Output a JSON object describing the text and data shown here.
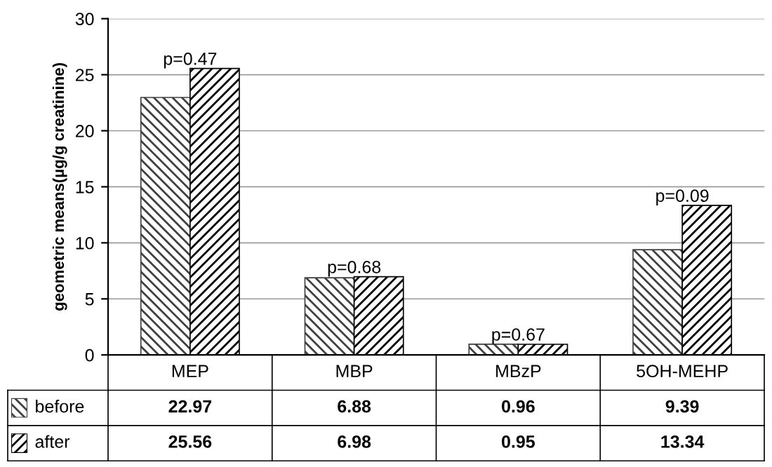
{
  "chart_data": {
    "type": "bar",
    "ylabel": "geometric means(µg/g creatinine)",
    "categories": [
      "MEP",
      "MBP",
      "MBzP",
      "5OH-MEHP"
    ],
    "series": [
      {
        "name": "before",
        "color": "#404040",
        "values": [
          22.97,
          6.88,
          0.96,
          9.39
        ]
      },
      {
        "name": "after",
        "color": "#000000",
        "values": [
          25.56,
          6.98,
          0.95,
          13.34
        ]
      }
    ],
    "ylim": [
      0,
      30
    ],
    "yticks": [
      0,
      5,
      10,
      15,
      20,
      25,
      30
    ],
    "grid": "y",
    "data_labels": true,
    "legend": "bottom",
    "annotations": [
      "p=0.47",
      "p=0.68",
      "p=0.67",
      "p=0.09"
    ]
  }
}
